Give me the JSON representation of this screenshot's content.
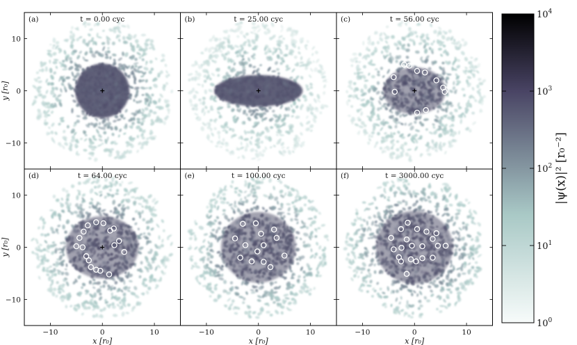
{
  "chart_data": {
    "type": "heatmap",
    "colormap": {
      "low_color": "#f7fbfa",
      "mid_color": "#a9c9c6",
      "high_color": "#494464",
      "top_color": "#000000",
      "scale": "log"
    },
    "colorbar": {
      "ticks": [
        "10^0",
        "10^1",
        "10^2",
        "10^3",
        "10^4"
      ],
      "tick_bases": [
        "10",
        "10",
        "10",
        "10",
        "10"
      ],
      "tick_exps": [
        "0",
        "1",
        "2",
        "3",
        "4"
      ],
      "label": "|ψ(x)|² [r₀⁻²]",
      "range": [
        1,
        10000
      ]
    },
    "axes": {
      "xlabel": "x [r₀]",
      "ylabel": "y [r₀]",
      "xlim": [
        -15,
        15
      ],
      "ylim": [
        -15,
        15
      ],
      "xticks": [
        "−10",
        "0",
        "10"
      ],
      "yticks": [
        "10",
        "0",
        "−10"
      ]
    },
    "panels": [
      {
        "letter": "(a)",
        "title": "t = 0.00 cyc",
        "t": 0.0,
        "core": {
          "rx": 5.2,
          "ry": 5.2,
          "dx": 0
        },
        "vortices": []
      },
      {
        "letter": "(b)",
        "title": "t = 25.00 cyc",
        "t": 25.0,
        "core": {
          "rx": 8.5,
          "ry": 3.0,
          "dx": 0
        },
        "vortices": []
      },
      {
        "letter": "(c)",
        "title": "t = 56.00 cyc",
        "t": 56.0,
        "core": {
          "rx": 6.0,
          "ry": 4.5,
          "dx": 0
        },
        "vortices": [
          [
            -2,
            5
          ],
          [
            -1,
            4.8
          ],
          [
            0.5,
            3.8
          ],
          [
            2,
            3.5
          ],
          [
            4.2,
            2
          ],
          [
            5.5,
            0.6
          ],
          [
            5.8,
            -0.2
          ],
          [
            -3.8,
            -0.2
          ],
          [
            -4,
            2.6
          ],
          [
            2.2,
            -3.7
          ],
          [
            0.5,
            -4.2
          ]
        ]
      },
      {
        "letter": "(d)",
        "title": "t = 64.00 cyc",
        "t": 64.0,
        "core": {
          "rx": 7.0,
          "ry": 6.0,
          "dx": 0
        },
        "vortices": [
          [
            -1.2,
            4.8
          ],
          [
            0.2,
            4.6
          ],
          [
            -2.8,
            4.2
          ],
          [
            -3.6,
            3
          ],
          [
            2.2,
            3.6
          ],
          [
            1.5,
            3.2
          ],
          [
            -4.4,
            1.8
          ],
          [
            3.2,
            1.2
          ],
          [
            2.3,
            0.4
          ],
          [
            -5,
            0.2
          ],
          [
            -3.8,
            0
          ],
          [
            4.2,
            -0.9
          ],
          [
            -3.1,
            -1.7
          ],
          [
            -2.6,
            -2.5
          ],
          [
            -2.2,
            -3.8
          ],
          [
            -1.2,
            -4.3
          ],
          [
            -0.4,
            -4.5
          ],
          [
            1.3,
            -5.2
          ]
        ]
      },
      {
        "letter": "(e)",
        "title": "t = 100.00 cyc",
        "t": 100.0,
        "core": {
          "rx": 7.2,
          "ry": 6.8,
          "dx": 0
        },
        "vortices": [
          [
            -3,
            4.5
          ],
          [
            -0.5,
            4.6
          ],
          [
            3,
            3.4
          ],
          [
            -4.5,
            1.7
          ],
          [
            0.5,
            2.6
          ],
          [
            -2.5,
            0.4
          ],
          [
            1,
            0.4
          ],
          [
            3.5,
            1.8
          ],
          [
            -0.2,
            -0.8
          ],
          [
            5,
            -1.6
          ],
          [
            -3.5,
            -2
          ],
          [
            -1.3,
            -2.7
          ],
          [
            1,
            -2.8
          ],
          [
            2.3,
            -3.8
          ]
        ]
      },
      {
        "letter": "(f)",
        "title": "t = 3000.00 cyc",
        "t": 3000.0,
        "core": {
          "rx": 7.4,
          "ry": 7.0,
          "dx": 0
        },
        "vortices": [
          [
            -1.3,
            4.7
          ],
          [
            0.5,
            3.5
          ],
          [
            -2.6,
            3.5
          ],
          [
            2.3,
            3
          ],
          [
            4.2,
            2.7
          ],
          [
            -4.5,
            1.8
          ],
          [
            -1.5,
            1.5
          ],
          [
            3.5,
            1.6
          ],
          [
            -2.5,
            -0.1
          ],
          [
            -0.5,
            0.3
          ],
          [
            1.5,
            0.2
          ],
          [
            4.5,
            0.3
          ],
          [
            -4,
            -0.4
          ],
          [
            6,
            0.3
          ],
          [
            -3,
            -1.9
          ],
          [
            -0.7,
            -2.3
          ],
          [
            1.5,
            -2.1
          ],
          [
            3.5,
            -2
          ],
          [
            -2.6,
            -2.7
          ],
          [
            0.3,
            -2.7
          ],
          [
            -1.5,
            -5.1
          ]
        ]
      }
    ]
  }
}
